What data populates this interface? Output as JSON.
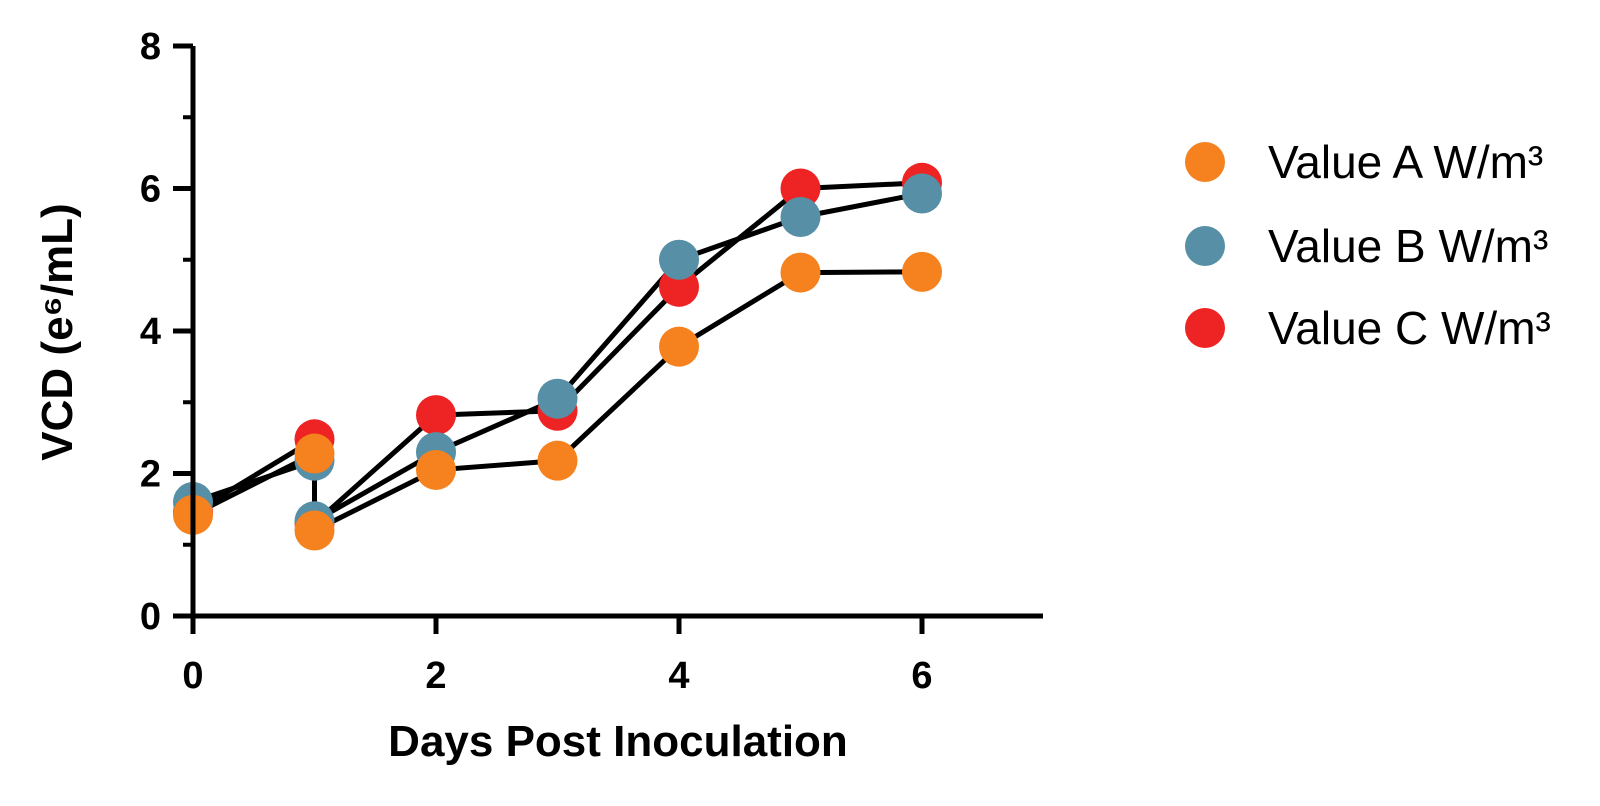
{
  "chart_data": {
    "type": "scatter",
    "xlabel": "Days Post Inoculation",
    "ylabel": "VCD (e⁶/mL)",
    "xlim": [
      0,
      7
    ],
    "ylim": [
      0,
      8
    ],
    "xticks": [
      "0",
      "2",
      "4",
      "6"
    ],
    "yticks": [
      "0",
      "2",
      "4",
      "6",
      "8"
    ],
    "legend_position": "right",
    "grid": false,
    "series": [
      {
        "name": "Value A W/m³",
        "color": "#F5821F",
        "points": [
          [
            0,
            1.42
          ],
          [
            1,
            2.28
          ],
          [
            1,
            1.2
          ],
          [
            2,
            2.05
          ],
          [
            3,
            2.18
          ],
          [
            4,
            3.78
          ],
          [
            5,
            4.82
          ],
          [
            6,
            4.83
          ]
        ]
      },
      {
        "name": "Value B W/m³",
        "color": "#568FA6",
        "points": [
          [
            0,
            1.6
          ],
          [
            1,
            2.18
          ],
          [
            1,
            1.33
          ],
          [
            2,
            2.3
          ],
          [
            3,
            3.05
          ],
          [
            4,
            5.0
          ],
          [
            5,
            5.6
          ],
          [
            6,
            5.93
          ]
        ]
      },
      {
        "name": "Value C W/m³",
        "color": "#EE2424",
        "points": [
          [
            0,
            1.45
          ],
          [
            1,
            2.48
          ],
          [
            1,
            1.3
          ],
          [
            2,
            2.82
          ],
          [
            3,
            2.88
          ],
          [
            4,
            4.62
          ],
          [
            5,
            6.0
          ],
          [
            6,
            6.08
          ]
        ]
      }
    ]
  }
}
